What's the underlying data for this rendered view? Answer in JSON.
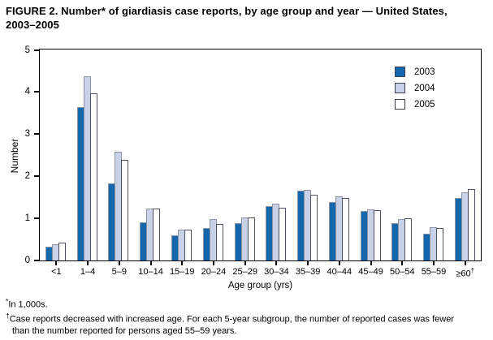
{
  "figure": {
    "title": "FIGURE 2. Number* of giardiasis case reports, by age group and year — United States, 2003–2005"
  },
  "chart_data": {
    "type": "bar",
    "title": "FIGURE 2. Number* of giardiasis case reports, by age group and year — United States, 2003–2005",
    "xlabel": "Age group (yrs)",
    "ylabel": "Number",
    "ylim": [
      0,
      5
    ],
    "yticks": [
      0,
      1,
      2,
      3,
      4,
      5
    ],
    "grid": false,
    "legend_position": "top-right",
    "units_note": "In 1,000s",
    "categories": [
      "<1",
      "1–4",
      "5–9",
      "10–14",
      "15–19",
      "20–24",
      "25–29",
      "30–34",
      "35–39",
      "40–44",
      "45–49",
      "50–54",
      "55–59",
      "≥60†"
    ],
    "series": [
      {
        "name": "2003",
        "color": "#1467ac",
        "border": "#8d93a1",
        "values": [
          0.33,
          3.64,
          1.83,
          0.9,
          0.6,
          0.77,
          0.88,
          1.3,
          1.67,
          1.39,
          1.18,
          0.89,
          0.64,
          1.48
        ]
      },
      {
        "name": "2004",
        "color": "#c8d1e8",
        "border": "#8d93a1",
        "values": [
          0.38,
          4.38,
          2.59,
          1.23,
          0.74,
          0.99,
          1.03,
          1.35,
          1.69,
          1.52,
          1.22,
          0.99,
          0.8,
          1.63
        ]
      },
      {
        "name": "2005",
        "color": "#ffffff",
        "border": "#4d5360",
        "values": [
          0.42,
          3.98,
          2.4,
          1.23,
          0.74,
          0.87,
          1.03,
          1.26,
          1.56,
          1.48,
          1.2,
          1.0,
          0.78,
          1.7
        ]
      }
    ]
  },
  "footnotes": {
    "line1_sym": "*",
    "line1_text": "In 1,000s.",
    "line2_sym": "†",
    "line2_text": "Case reports decreased with increased age. For each 5-year subgroup, the number of reported cases was fewer than the number reported for persons aged 55–59 years."
  }
}
